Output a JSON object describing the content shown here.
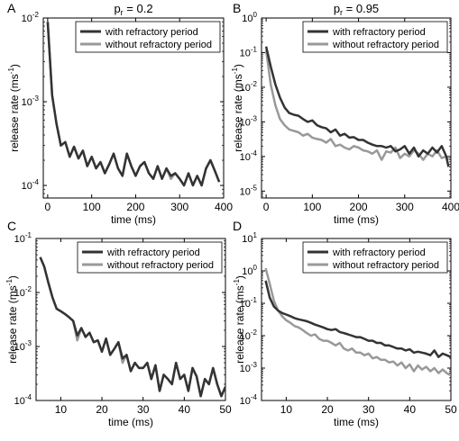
{
  "chart_data": [
    {
      "type": "line",
      "panel_label": "A",
      "title_main": "p",
      "title_sub": "r",
      "title_rest": " = 0.2",
      "xlabel": "time (ms)",
      "ylabel_main": "release rate (ms",
      "ylabel_sup": "-1",
      "ylabel_end": ")",
      "xlim": [
        -10,
        400
      ],
      "ylim_log10": [
        -4.15,
        -2
      ],
      "yscale": "log",
      "xticks": [
        0,
        100,
        200,
        300,
        400
      ],
      "xtick_labels": [
        "0",
        "100",
        "200",
        "300",
        "400"
      ],
      "yticks": [
        -4,
        -3,
        -2
      ],
      "ytick_labels": [
        [
          "10",
          "-4"
        ],
        [
          "10",
          "-3"
        ],
        [
          "10",
          "-2"
        ]
      ],
      "legend_position": "top-right",
      "series": [
        {
          "name": "with refractory period",
          "color": "#333333",
          "x": [
            0,
            10,
            20,
            30,
            40,
            50,
            60,
            70,
            80,
            90,
            100,
            110,
            120,
            130,
            140,
            150,
            160,
            170,
            180,
            190,
            200,
            210,
            220,
            230,
            240,
            250,
            260,
            270,
            280,
            290,
            300,
            310,
            320,
            330,
            340,
            350,
            360,
            370,
            380,
            390
          ],
          "y": [
            0.009,
            0.0012,
            0.00055,
            0.0003,
            0.00033,
            0.00022,
            0.00029,
            0.00021,
            0.00026,
            0.00017,
            0.00022,
            0.00016,
            0.00019,
            0.00014,
            0.00018,
            0.00024,
            0.00016,
            0.00013,
            0.00024,
            0.00017,
            0.00013,
            0.00017,
            0.00019,
            0.00014,
            0.00012,
            0.00017,
            0.00012,
            0.00016,
            0.00013,
            0.00014,
            0.00012,
            0.0001,
            0.00014,
            0.0001,
            0.00013,
            0.0001,
            0.00016,
            0.0002,
            0.00015,
            0.00011
          ]
        },
        {
          "name": "without refractory period",
          "color": "#999999",
          "x": [
            0,
            10,
            20,
            30,
            40,
            50,
            60,
            70,
            80,
            90,
            100,
            110,
            120,
            130,
            140,
            150,
            160,
            170,
            180,
            190,
            200,
            210,
            220,
            230,
            240,
            250,
            260,
            270,
            280,
            290,
            300,
            310,
            320,
            330,
            340,
            350,
            360,
            370,
            380,
            390
          ],
          "y": [
            0.009,
            0.0012,
            0.00055,
            0.0003,
            0.00033,
            0.00022,
            0.00029,
            0.00021,
            0.00026,
            0.00017,
            0.00022,
            0.00016,
            0.00019,
            0.00014,
            0.00018,
            0.00024,
            0.00016,
            0.00013,
            0.00024,
            0.00017,
            0.00013,
            0.00017,
            0.00019,
            0.00014,
            0.00012,
            0.00017,
            0.00012,
            0.00016,
            0.00012,
            0.00014,
            0.00012,
            0.0001,
            0.00014,
            0.0001,
            0.00013,
            0.0001,
            0.00016,
            0.0002,
            0.00015,
            0.00011
          ]
        }
      ]
    },
    {
      "type": "line",
      "panel_label": "B",
      "title_main": "p",
      "title_sub": "r",
      "title_rest": " = 0.95",
      "xlabel": "time (ms)",
      "ylabel_main": "release rate (ms",
      "ylabel_sup": "-1",
      "ylabel_end": ")",
      "xlim": [
        -10,
        400
      ],
      "ylim_log10": [
        -5.2,
        0
      ],
      "yscale": "log",
      "xticks": [
        0,
        100,
        200,
        300,
        400
      ],
      "xtick_labels": [
        "0",
        "100",
        "200",
        "300",
        "400"
      ],
      "yticks": [
        -5,
        -4,
        -3,
        -2,
        -1,
        0
      ],
      "ytick_labels": [
        [
          "10",
          "-5"
        ],
        [
          "10",
          "-4"
        ],
        [
          "10",
          "-3"
        ],
        [
          "10",
          "-2"
        ],
        [
          "10",
          "-1"
        ],
        [
          "10",
          "0"
        ]
      ],
      "legend_position": "top-right",
      "series": [
        {
          "name": "with refractory period",
          "color": "#333333",
          "x": [
            0,
            10,
            20,
            30,
            40,
            50,
            60,
            70,
            80,
            90,
            100,
            110,
            120,
            130,
            140,
            150,
            160,
            170,
            180,
            190,
            200,
            210,
            220,
            230,
            240,
            250,
            260,
            270,
            280,
            290,
            300,
            310,
            320,
            330,
            340,
            350,
            360,
            370,
            380,
            390,
            395
          ],
          "y": [
            0.15,
            0.04,
            0.012,
            0.005,
            0.0026,
            0.0018,
            0.0016,
            0.0015,
            0.0012,
            0.001,
            0.0011,
            0.0008,
            0.0007,
            0.00065,
            0.0005,
            0.0006,
            0.0004,
            0.00045,
            0.00035,
            0.00036,
            0.0003,
            0.0003,
            0.00025,
            0.00022,
            0.0002,
            0.0002,
            0.00018,
            0.0002,
            0.00014,
            0.00016,
            0.0002,
            0.00012,
            0.00018,
            0.0001,
            0.00015,
            0.00012,
            0.00018,
            0.00013,
            0.0002,
            0.0001,
            5e-05
          ]
        },
        {
          "name": "without refractory period",
          "color": "#999999",
          "x": [
            0,
            10,
            20,
            30,
            40,
            50,
            60,
            70,
            80,
            90,
            100,
            110,
            120,
            130,
            140,
            150,
            160,
            170,
            180,
            190,
            200,
            210,
            220,
            230,
            240,
            250,
            260,
            270,
            280,
            290,
            300,
            310,
            320,
            330,
            340,
            350,
            360,
            370,
            380,
            390,
            395
          ],
          "y": [
            0.12,
            0.012,
            0.003,
            0.0012,
            0.0008,
            0.0006,
            0.00055,
            0.0005,
            0.0004,
            0.00045,
            0.00035,
            0.00032,
            0.0003,
            0.00025,
            0.00032,
            0.0002,
            0.00022,
            0.00018,
            0.00016,
            0.0002,
            0.00018,
            0.00015,
            0.00014,
            0.00012,
            0.00015,
            8e-05,
            0.00014,
            0.00013,
            0.00018,
            9e-05,
            0.00012,
            0.0001,
            0.00015,
            0.00012,
            8e-05,
            0.00012,
            0.0001,
            0.00015,
            9e-05,
            0.0001,
            8e-05
          ]
        }
      ]
    },
    {
      "type": "line",
      "panel_label": "C",
      "xlabel": "time (ms)",
      "ylabel_main": "release rate (ms",
      "ylabel_sup": "-1",
      "ylabel_end": ")",
      "xlim": [
        4,
        50
      ],
      "ylim_log10": [
        -4,
        -1
      ],
      "yscale": "log",
      "xticks": [
        10,
        20,
        30,
        40,
        50
      ],
      "xtick_labels": [
        "10",
        "20",
        "30",
        "40",
        "50"
      ],
      "yticks": [
        -4,
        -3,
        -2,
        -1
      ],
      "ytick_labels": [
        [
          "10",
          "-4"
        ],
        [
          "10",
          "-3"
        ],
        [
          "10",
          "-2"
        ],
        [
          "10",
          "-1"
        ]
      ],
      "legend_position": "top-right",
      "series": [
        {
          "name": "with refractory period",
          "color": "#333333",
          "x": [
            5,
            6,
            7,
            8,
            9,
            10,
            11,
            12,
            13,
            14,
            15,
            16,
            17,
            18,
            19,
            20,
            21,
            22,
            23,
            24,
            25,
            26,
            27,
            28,
            29,
            30,
            31,
            32,
            33,
            34,
            35,
            36,
            37,
            38,
            39,
            40,
            41,
            42,
            43,
            44,
            45,
            46,
            47,
            48,
            49,
            50
          ],
          "y": [
            0.045,
            0.03,
            0.015,
            0.008,
            0.005,
            0.0045,
            0.004,
            0.0035,
            0.003,
            0.0016,
            0.0022,
            0.0015,
            0.0018,
            0.0012,
            0.0013,
            0.0008,
            0.0014,
            0.0007,
            0.0009,
            0.0012,
            0.0006,
            0.0007,
            0.00035,
            0.0005,
            0.0004,
            0.0004,
            0.0005,
            0.00025,
            0.00045,
            0.00015,
            0.0003,
            0.00025,
            0.0002,
            0.0005,
            0.00025,
            0.0003,
            0.00015,
            0.0004,
            0.00028,
            0.00012,
            0.00025,
            0.0002,
            0.0004,
            0.0002,
            0.00012,
            0.00018
          ]
        },
        {
          "name": "without refractory period",
          "color": "#999999",
          "x": [
            5,
            6,
            7,
            8,
            9,
            10,
            11,
            12,
            13,
            14,
            15,
            16,
            17,
            18,
            19,
            20,
            21,
            22,
            23,
            24,
            25,
            26,
            27,
            28,
            29,
            30,
            31,
            32,
            33,
            34,
            35,
            36,
            37,
            38,
            39,
            40,
            41,
            42,
            43,
            44,
            45,
            46,
            47,
            48,
            49,
            50
          ],
          "y": [
            0.045,
            0.03,
            0.015,
            0.008,
            0.005,
            0.0045,
            0.004,
            0.0035,
            0.003,
            0.0013,
            0.0022,
            0.0015,
            0.0018,
            0.0012,
            0.0013,
            0.0008,
            0.0014,
            0.0007,
            0.0009,
            0.0012,
            0.0005,
            0.0007,
            0.00035,
            0.0005,
            0.0004,
            0.0004,
            0.0005,
            0.00025,
            0.00045,
            0.00015,
            0.0003,
            0.00025,
            0.0002,
            0.0005,
            0.00025,
            0.0003,
            0.00015,
            0.0004,
            0.00028,
            0.00012,
            0.00025,
            0.0002,
            0.0004,
            0.0002,
            0.00012,
            0.00018
          ]
        }
      ]
    },
    {
      "type": "line",
      "panel_label": "D",
      "xlabel": "time (ms)",
      "ylabel_main": "release rate (ms",
      "ylabel_sup": "-1",
      "ylabel_end": ")",
      "xlim": [
        4,
        50
      ],
      "ylim_log10": [
        -4,
        1
      ],
      "yscale": "log",
      "xticks": [
        10,
        20,
        30,
        40,
        50
      ],
      "xtick_labels": [
        "10",
        "20",
        "30",
        "40",
        "50"
      ],
      "yticks": [
        -4,
        -3,
        -2,
        -1,
        0,
        1
      ],
      "ytick_labels": [
        [
          "10",
          "-4"
        ],
        [
          "10",
          "-3"
        ],
        [
          "10",
          "-2"
        ],
        [
          "10",
          "-1"
        ],
        [
          "10",
          "0"
        ],
        [
          "10",
          "1"
        ]
      ],
      "legend_position": "top-right",
      "series": [
        {
          "name": "with refractory period",
          "color": "#333333",
          "x": [
            5,
            6,
            7,
            8,
            9,
            10,
            11,
            12,
            13,
            14,
            15,
            16,
            17,
            18,
            19,
            20,
            21,
            22,
            23,
            24,
            25,
            26,
            27,
            28,
            29,
            30,
            31,
            32,
            33,
            34,
            35,
            36,
            37,
            38,
            39,
            40,
            41,
            42,
            43,
            44,
            45,
            46,
            47,
            48,
            49,
            50
          ],
          "y": [
            0.5,
            0.15,
            0.08,
            0.06,
            0.05,
            0.045,
            0.04,
            0.035,
            0.032,
            0.03,
            0.028,
            0.025,
            0.022,
            0.02,
            0.018,
            0.016,
            0.015,
            0.016,
            0.013,
            0.012,
            0.011,
            0.01,
            0.009,
            0.009,
            0.008,
            0.007,
            0.007,
            0.006,
            0.006,
            0.005,
            0.005,
            0.0045,
            0.004,
            0.004,
            0.0035,
            0.0038,
            0.003,
            0.0032,
            0.003,
            0.0028,
            0.0025,
            0.0035,
            0.0022,
            0.0028,
            0.0025,
            0.0022
          ]
        },
        {
          "name": "without refractory period",
          "color": "#999999",
          "x": [
            5,
            6,
            7,
            8,
            9,
            10,
            11,
            12,
            13,
            14,
            15,
            16,
            17,
            18,
            19,
            20,
            21,
            22,
            23,
            24,
            25,
            26,
            27,
            28,
            29,
            30,
            31,
            32,
            33,
            34,
            35,
            36,
            37,
            38,
            39,
            40,
            41,
            42,
            43,
            44,
            45,
            46,
            47,
            48,
            49,
            50
          ],
          "y": [
            1.2,
            0.4,
            0.12,
            0.06,
            0.04,
            0.03,
            0.025,
            0.02,
            0.018,
            0.015,
            0.012,
            0.01,
            0.011,
            0.008,
            0.007,
            0.007,
            0.006,
            0.005,
            0.006,
            0.004,
            0.0035,
            0.004,
            0.003,
            0.003,
            0.0025,
            0.0028,
            0.002,
            0.0022,
            0.0018,
            0.0018,
            0.0015,
            0.0016,
            0.0012,
            0.0015,
            0.001,
            0.0013,
            0.0008,
            0.0012,
            0.0009,
            0.0011,
            0.0008,
            0.001,
            0.0007,
            0.0009,
            0.0007,
            0.0006
          ]
        }
      ]
    }
  ]
}
